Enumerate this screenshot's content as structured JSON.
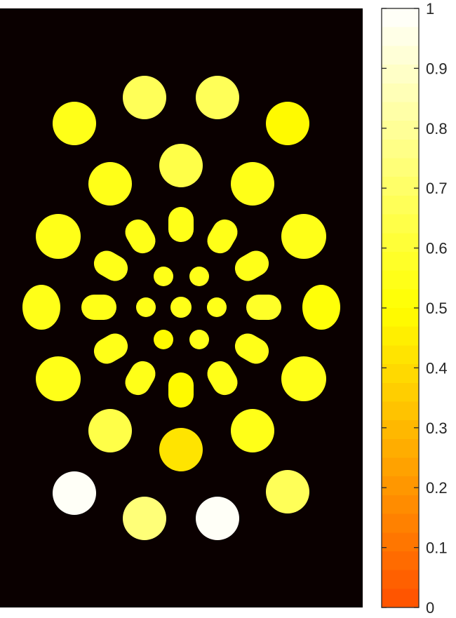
{
  "chart_data": {
    "type": "heatmap",
    "title": "",
    "xlabel": "",
    "ylabel": "",
    "background_color": "#0a0000",
    "colormap": "hot-autumn (0 = red-orange, 0.5 = yellow, 1 = white)",
    "colorbar": {
      "clim": [
        0,
        1
      ],
      "ticks": [
        0,
        0.1,
        0.2,
        0.3,
        0.4,
        0.5,
        0.6,
        0.7,
        0.8,
        0.9,
        1
      ],
      "tick_labels": [
        "0",
        "0.1",
        "0.2",
        "0.3",
        "0.4",
        "0.5",
        "0.6",
        "0.7",
        "0.8",
        "0.9",
        "1"
      ],
      "levels": 32
    },
    "regions": [
      {
        "id": "center",
        "value": 0.55
      },
      {
        "id": "inner-ring-1",
        "value": 0.55
      },
      {
        "id": "inner-ring-2",
        "value": 0.55
      },
      {
        "id": "inner-ring-3",
        "value": 0.55
      },
      {
        "id": "inner-ring-4",
        "value": 0.55
      },
      {
        "id": "inner-ring-5",
        "value": 0.47
      },
      {
        "id": "inner-ring-6",
        "value": 0.55
      },
      {
        "id": "mid-ring-1",
        "value": 0.57
      },
      {
        "id": "mid-ring-2",
        "value": 0.55
      },
      {
        "id": "mid-ring-3",
        "value": 0.55
      },
      {
        "id": "mid-ring-4",
        "value": 0.47
      },
      {
        "id": "mid-ring-5",
        "value": 0.55
      },
      {
        "id": "mid-ring-6",
        "value": 0.55
      },
      {
        "id": "mid-ring-7",
        "value": 0.55
      },
      {
        "id": "mid-ring-8",
        "value": 0.55
      },
      {
        "id": "mid-ring-9",
        "value": 0.55
      },
      {
        "id": "mid-ring-10",
        "value": 0.55
      },
      {
        "id": "mid-ring-11",
        "value": 0.55
      },
      {
        "id": "mid-ring-12",
        "value": 0.55
      },
      {
        "id": "outer-ring-1",
        "value": 0.63
      },
      {
        "id": "outer-ring-2",
        "value": 0.55
      },
      {
        "id": "outer-ring-3",
        "value": 0.55
      },
      {
        "id": "outer-ring-4",
        "value": 0.55
      },
      {
        "id": "outer-ring-5",
        "value": 0.55
      },
      {
        "id": "outer-ring-6",
        "value": 0.42
      },
      {
        "id": "outer-ring-7",
        "value": 0.63
      },
      {
        "id": "outer-ring-8",
        "value": 0.55
      },
      {
        "id": "outer-ring-9",
        "value": 0.55
      },
      {
        "id": "outer-ring-10",
        "value": 0.55
      },
      {
        "id": "outermost-1",
        "value": 0.68
      },
      {
        "id": "outermost-2",
        "value": 0.68
      },
      {
        "id": "outermost-3",
        "value": 0.48
      },
      {
        "id": "outermost-4",
        "value": 0.55
      },
      {
        "id": "outermost-5",
        "value": 0.55
      },
      {
        "id": "outermost-6",
        "value": 0.53
      },
      {
        "id": "outermost-7",
        "value": 0.55
      },
      {
        "id": "outermost-8",
        "value": 0.55
      },
      {
        "id": "outermost-9",
        "value": 0.66
      },
      {
        "id": "outermost-10",
        "value": 1.0
      },
      {
        "id": "outermost-11",
        "value": 0.72
      },
      {
        "id": "outermost-12",
        "value": 1.0
      },
      {
        "id": "outermost-13",
        "value": 0.55
      },
      {
        "id": "outermost-14",
        "value": 0.55
      },
      {
        "id": "outermost-15",
        "value": 0.55
      },
      {
        "id": "outermost-16",
        "value": 0.55
      }
    ]
  }
}
